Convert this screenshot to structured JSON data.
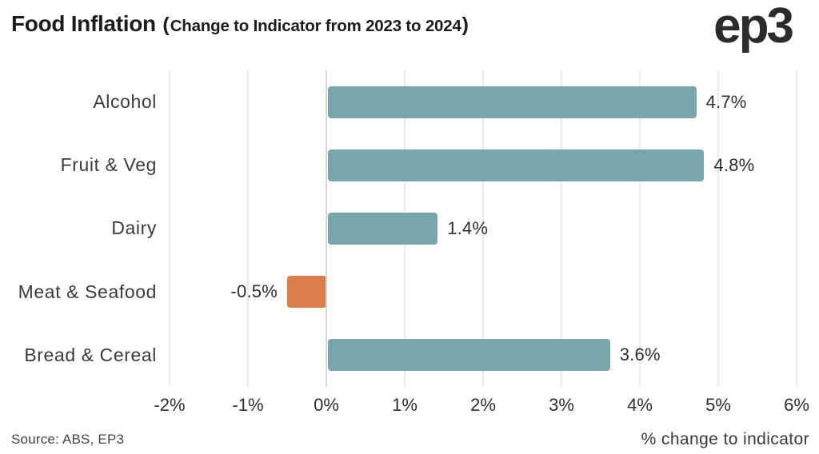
{
  "header": {
    "title_main": "Food Inflation",
    "title_paren_open": "(",
    "title_sub": "Change to Indicator from 2023 to 2024",
    "title_paren_close": ")",
    "logo_text": "ep3"
  },
  "chart_data": {
    "type": "bar",
    "orientation": "horizontal",
    "title": "Food Inflation (Change to Indicator from 2023 to 2024)",
    "categories": [
      "Alcohol",
      "Fruit & Veg",
      "Dairy",
      "Meat & Seafood",
      "Bread & Cereal"
    ],
    "values": [
      4.7,
      4.8,
      1.4,
      -0.5,
      3.6
    ],
    "value_labels": [
      "4.7%",
      "4.8%",
      "1.4%",
      "-0.5%",
      "3.6%"
    ],
    "xlabel": "% change to indicator",
    "xlim": [
      -2,
      6
    ],
    "xticks": [
      -2,
      -1,
      0,
      1,
      2,
      3,
      4,
      5,
      6
    ],
    "xtick_labels": [
      "-2%",
      "-1%",
      "0%",
      "1%",
      "2%",
      "3%",
      "4%",
      "5%",
      "6%"
    ],
    "grid": true,
    "legend": false,
    "colors": {
      "positive_bar": "#7aa5ad",
      "negative_bar": "#d97e4a",
      "gridline": "#edebe3",
      "zero_line": "#d8d6d1",
      "label_text": "#2e2e2e"
    }
  },
  "footer": {
    "source": "Source: ABS, EP3",
    "axis_label": "% change to indicator"
  }
}
